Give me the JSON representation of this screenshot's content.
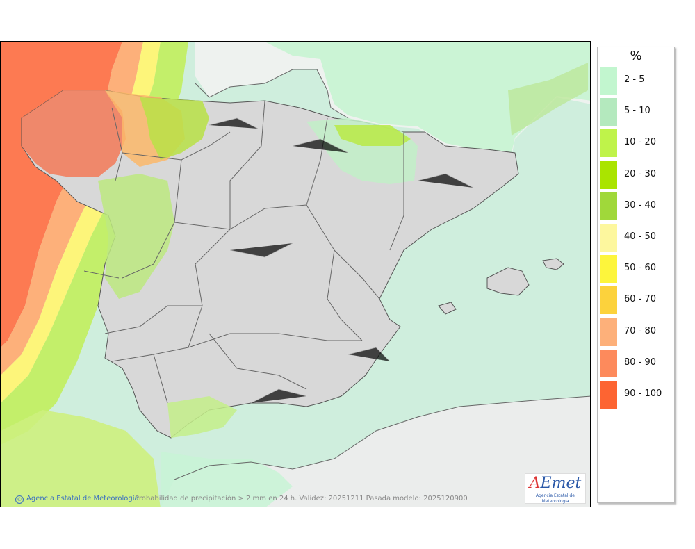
{
  "map": {
    "credit": "Agencia Estatal de Meteorología",
    "caption": "Probabilidad de precipitación > 2 mm en 24 h. Validez: 20251211 Pasada modelo: 2025120900"
  },
  "logo": {
    "text_a": "A",
    "text_rest": "Emet",
    "subtitle": "Agencia Estatal de Meteorología"
  },
  "legend": {
    "title": "%",
    "items": [
      {
        "label": "2 - 5",
        "color": "#c2f6cf"
      },
      {
        "label": "5 - 10",
        "color": "#b4e9be"
      },
      {
        "label": "10 - 20",
        "color": "#bff34a"
      },
      {
        "label": "20 - 30",
        "color": "#aae400"
      },
      {
        "label": "30 - 40",
        "color": "#a0d83a"
      },
      {
        "label": "40 - 50",
        "color": "#fdf79e"
      },
      {
        "label": "50 - 60",
        "color": "#fdf53c"
      },
      {
        "label": "60 - 70",
        "color": "#fcd23c"
      },
      {
        "label": "70 - 80",
        "color": "#fdb07a"
      },
      {
        "label": "80 - 90",
        "color": "#fd8a5c"
      },
      {
        "label": "90 - 100",
        "color": "#fd6432"
      }
    ]
  }
}
